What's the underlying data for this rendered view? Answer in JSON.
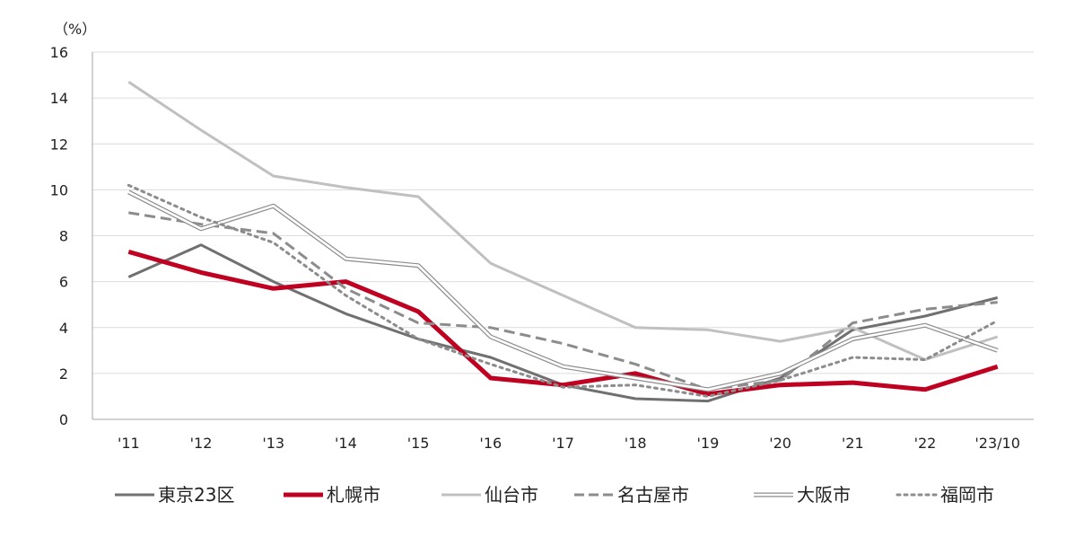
{
  "chart_data": {
    "type": "line",
    "title": "",
    "xlabel": "",
    "ylabel": "",
    "y_unit": "（%）",
    "ylim": [
      0,
      16
    ],
    "y_ticks": [
      0,
      2,
      4,
      6,
      8,
      10,
      12,
      14,
      16
    ],
    "grid": true,
    "legend_position": "bottom",
    "categories": [
      "'11",
      "'12",
      "'13",
      "'14",
      "'15",
      "'16",
      "'17",
      "'18",
      "'19",
      "'20",
      "'21",
      "'22",
      "'23/10"
    ],
    "series": [
      {
        "name": "東京23区",
        "color": "#707070",
        "style": "solid",
        "width": 3,
        "values": [
          6.2,
          7.6,
          6.0,
          4.6,
          3.5,
          2.7,
          1.5,
          0.9,
          0.8,
          1.8,
          3.9,
          4.5,
          5.3
        ]
      },
      {
        "name": "札幌市",
        "color": "#c00021",
        "style": "solid",
        "width": 5,
        "values": [
          7.3,
          6.4,
          5.7,
          6.0,
          4.7,
          1.8,
          1.5,
          2.0,
          1.1,
          1.5,
          1.6,
          1.3,
          2.3
        ]
      },
      {
        "name": "仙台市",
        "color": "#c0c0c0",
        "style": "solid",
        "width": 3,
        "values": [
          14.7,
          12.6,
          10.6,
          10.1,
          9.7,
          6.8,
          5.4,
          4.0,
          3.9,
          3.4,
          4.0,
          2.6,
          3.6
        ]
      },
      {
        "name": "名古屋市",
        "color": "#8c8c8c",
        "style": "dashed",
        "width": 3,
        "values": [
          9.0,
          8.5,
          8.1,
          5.7,
          4.2,
          4.0,
          3.3,
          2.4,
          1.3,
          1.7,
          4.2,
          4.8,
          5.1
        ]
      },
      {
        "name": "大阪市",
        "color": "#8c8c8c",
        "style": "double",
        "width": 1,
        "values": [
          9.9,
          8.3,
          9.3,
          7.0,
          6.7,
          3.6,
          2.3,
          1.8,
          1.3,
          2.0,
          3.5,
          4.1,
          3.0
        ]
      },
      {
        "name": "福岡市",
        "color": "#8c8c8c",
        "style": "dotted",
        "width": 3,
        "values": [
          10.2,
          8.8,
          7.7,
          5.4,
          3.5,
          2.4,
          1.4,
          1.5,
          1.0,
          1.7,
          2.7,
          2.6,
          4.3
        ]
      }
    ]
  }
}
